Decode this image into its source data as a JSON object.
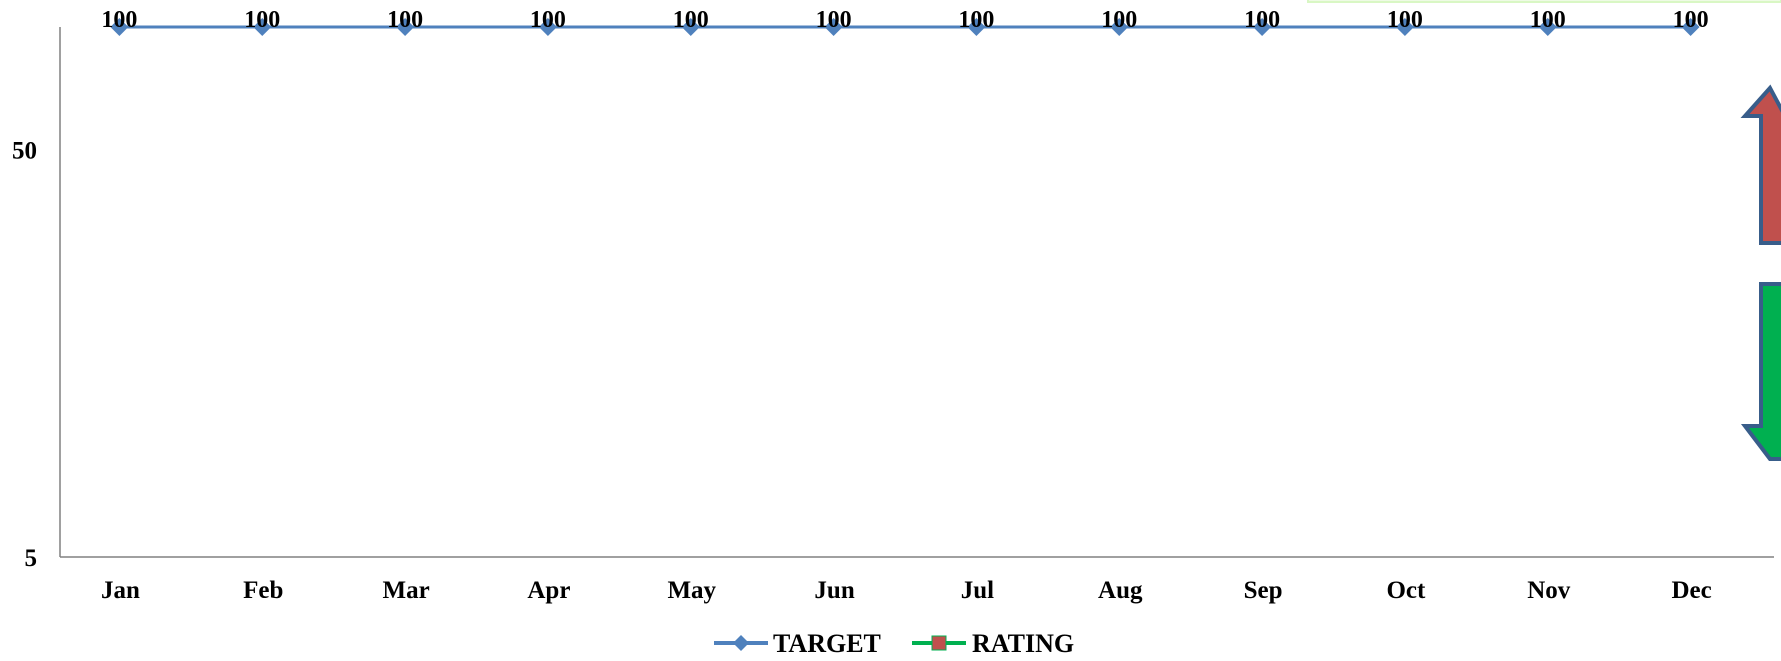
{
  "chart_data": {
    "type": "line",
    "categories": [
      "Jan",
      "Feb",
      "Mar",
      "Apr",
      "May",
      "Jun",
      "Jul",
      "Aug",
      "Sep",
      "Oct",
      "Nov",
      "Dec"
    ],
    "series": [
      {
        "name": "TARGET",
        "values": [
          100,
          100,
          100,
          100,
          100,
          100,
          100,
          100,
          100,
          100,
          100,
          100
        ],
        "color": "#4F81BD",
        "marker": "diamond"
      },
      {
        "name": "RATING",
        "values": [
          null,
          null,
          null,
          null,
          null,
          null,
          null,
          null,
          null,
          null,
          null,
          null
        ],
        "color": "#00B050",
        "marker_color": "#C0504D",
        "marker": "square"
      }
    ],
    "y_scale": "log",
    "y_ticks": [
      5,
      50
    ],
    "ylim": [
      5,
      100
    ],
    "data_labels": true,
    "grid": false,
    "legend": "bottom",
    "title": "",
    "xlabel": "",
    "ylabel": ""
  },
  "colors": {
    "axis": "#808080",
    "arrow_up_fill": "#C0504D",
    "arrow_down_fill": "#00B050",
    "arrow_outline": "#385D8A",
    "banner_edge": "#D9F7C4"
  },
  "icons": [
    "arrow-up-icon",
    "arrow-down-icon"
  ]
}
